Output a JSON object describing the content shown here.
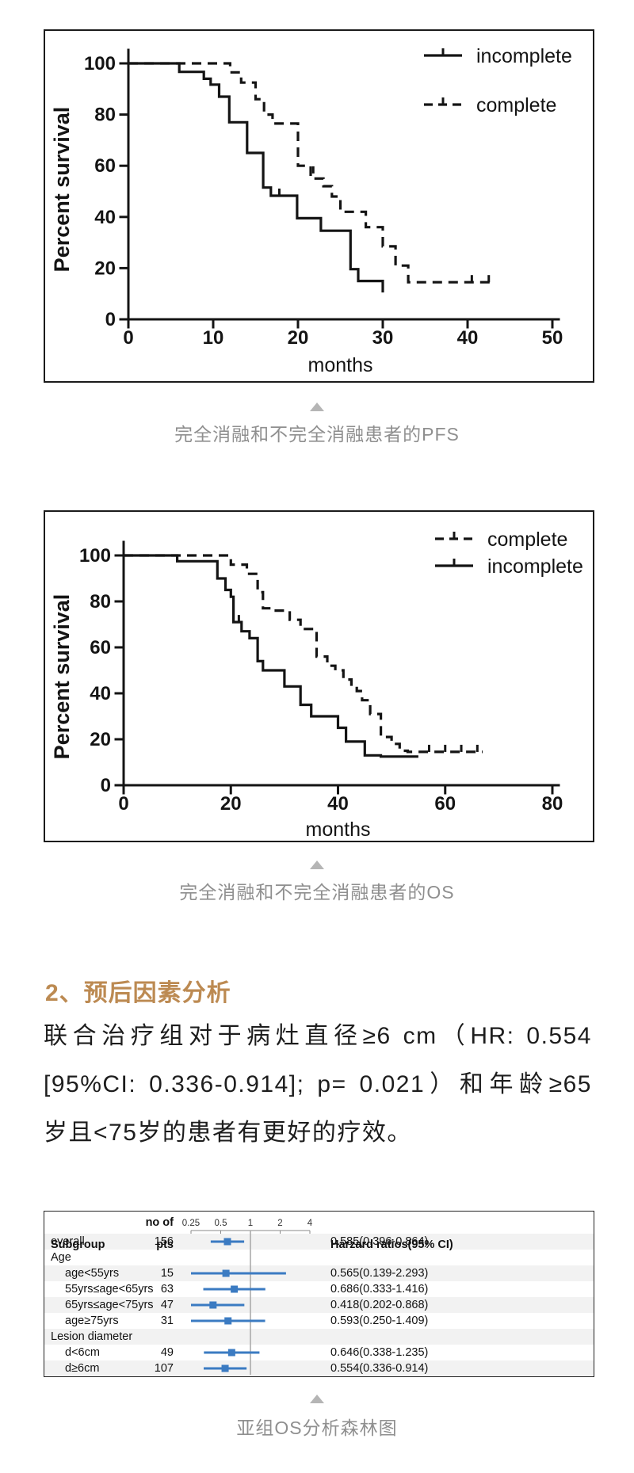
{
  "colors": {
    "accent_heading": "#bc8a52",
    "caption_gray": "#8f8f8f",
    "triangle_gray": "#b5b5b5",
    "curve_black": "#141414",
    "forest_blue": "#3b7bc2",
    "forest_ref_line": "#a6a6a6",
    "row_stripe": "#f2f2f2",
    "body_text": "#1d1d1d"
  },
  "figure1": {
    "caption": "完全消融和不完全消融患者的PFS"
  },
  "figure2": {
    "caption": "完全消融和不完全消融患者的OS"
  },
  "figure3": {
    "caption": "亚组OS分析森林图"
  },
  "section": {
    "heading": "2、预后因素分析",
    "paragraph_lines": [
      "联合治疗组对于病灶直径≥6 cm（HR: 0.554",
      "[95%CI: 0.336-0.914]; p= 0.021）和年龄≥65",
      "岁且<75岁的患者有更好的疗效。"
    ]
  },
  "chart_data": [
    {
      "id": "pfs",
      "type": "line",
      "subtype": "kaplan-meier-step",
      "xlabel": "months",
      "ylabel": "Percent survival",
      "xlim": [
        0,
        50
      ],
      "xticks": [
        0,
        10,
        20,
        30,
        40,
        50
      ],
      "ylim": [
        0,
        100
      ],
      "yticks": [
        0,
        20,
        40,
        60,
        80,
        100
      ],
      "grid": false,
      "legend_position": "top-right-inside",
      "legend": [
        {
          "label": "incomplete",
          "style": "solid"
        },
        {
          "label": "complete",
          "style": "dashed"
        }
      ],
      "series": [
        {
          "name": "incomplete",
          "style": "solid",
          "points": [
            [
              0,
              100
            ],
            [
              6,
              100
            ],
            [
              6,
              96.7
            ],
            [
              8.9,
              96.7
            ],
            [
              8.9,
              94
            ],
            [
              9.7,
              94
            ],
            [
              9.7,
              91.7
            ],
            [
              10.7,
              91.7
            ],
            [
              10.7,
              87
            ],
            [
              11.9,
              87
            ],
            [
              11.9,
              77
            ],
            [
              14,
              77
            ],
            [
              14,
              65
            ],
            [
              15.9,
              65
            ],
            [
              15.9,
              51.5
            ],
            [
              16.8,
              51.5
            ],
            [
              16.8,
              48.3
            ],
            [
              19.9,
              48.3
            ],
            [
              19.9,
              39.5
            ],
            [
              22.7,
              39.5
            ],
            [
              22.7,
              34.6
            ],
            [
              26.2,
              34.6
            ],
            [
              26.2,
              19.6
            ],
            [
              27.1,
              19.6
            ],
            [
              27.1,
              15
            ],
            [
              30,
              15
            ],
            [
              30,
              10.5
            ]
          ],
          "censor_ticks": [
            [
              17.8,
              48.3
            ]
          ]
        },
        {
          "name": "complete",
          "style": "dashed",
          "points": [
            [
              0,
              100
            ],
            [
              12,
              100
            ],
            [
              12,
              96.5
            ],
            [
              13.3,
              96.5
            ],
            [
              13.3,
              92.5
            ],
            [
              15,
              92.5
            ],
            [
              15,
              86
            ],
            [
              16,
              86
            ],
            [
              16,
              80
            ],
            [
              17,
              80
            ],
            [
              17,
              76.5
            ],
            [
              20,
              76.5
            ],
            [
              20,
              60
            ],
            [
              21.5,
              60
            ],
            [
              21.5,
              55
            ],
            [
              23,
              55
            ],
            [
              23,
              52
            ],
            [
              24,
              52
            ],
            [
              24,
              48
            ],
            [
              25,
              48
            ],
            [
              25,
              42
            ],
            [
              28,
              42
            ],
            [
              28,
              36
            ],
            [
              30,
              36
            ],
            [
              30,
              28.5
            ],
            [
              31.5,
              28.5
            ],
            [
              31.5,
              21
            ],
            [
              33,
              21
            ],
            [
              33,
              14.5
            ],
            [
              43,
              14.5
            ]
          ],
          "censor_ticks": [
            [
              21.8,
              57
            ],
            [
              40.5,
              14.5
            ],
            [
              42.5,
              14.5
            ]
          ]
        }
      ]
    },
    {
      "id": "os",
      "type": "line",
      "subtype": "kaplan-meier-step",
      "xlabel": "months",
      "ylabel": "Percent survival",
      "xlim": [
        0,
        80
      ],
      "xticks": [
        0,
        20,
        40,
        60,
        80
      ],
      "ylim": [
        0,
        100
      ],
      "yticks": [
        0,
        20,
        40,
        60,
        80,
        100
      ],
      "grid": false,
      "legend_position": "top-right-inside",
      "legend": [
        {
          "label": "complete",
          "style": "dashed"
        },
        {
          "label": "incomplete",
          "style": "solid"
        }
      ],
      "series": [
        {
          "name": "incomplete",
          "style": "solid",
          "points": [
            [
              0,
              100
            ],
            [
              10,
              100
            ],
            [
              10,
              97.5
            ],
            [
              17.5,
              97.5
            ],
            [
              17.5,
              90
            ],
            [
              19,
              90
            ],
            [
              19,
              85
            ],
            [
              20,
              85
            ],
            [
              20,
              82
            ],
            [
              20.5,
              82
            ],
            [
              20.5,
              71
            ],
            [
              22,
              71
            ],
            [
              22,
              67
            ],
            [
              23.5,
              67
            ],
            [
              23.5,
              64
            ],
            [
              25,
              64
            ],
            [
              25,
              54
            ],
            [
              26,
              54
            ],
            [
              26,
              50
            ],
            [
              30,
              50
            ],
            [
              30,
              43
            ],
            [
              33,
              43
            ],
            [
              33,
              35
            ],
            [
              35,
              35
            ],
            [
              35,
              30
            ],
            [
              40,
              30
            ],
            [
              40,
              25
            ],
            [
              41.5,
              25
            ],
            [
              41.5,
              19
            ],
            [
              45,
              19
            ],
            [
              45,
              13
            ],
            [
              48,
              13
            ],
            [
              48,
              12.5
            ],
            [
              55,
              12.5
            ]
          ],
          "censor_ticks": [
            [
              21.5,
              71
            ]
          ]
        },
        {
          "name": "complete",
          "style": "dashed",
          "points": [
            [
              0,
              100
            ],
            [
              20,
              100
            ],
            [
              20,
              96
            ],
            [
              23,
              96
            ],
            [
              23,
              92
            ],
            [
              25,
              92
            ],
            [
              25,
              84
            ],
            [
              26,
              84
            ],
            [
              26,
              77
            ],
            [
              27.5,
              77
            ],
            [
              27.5,
              76
            ],
            [
              31,
              76
            ],
            [
              31,
              72
            ],
            [
              33,
              72
            ],
            [
              33,
              68
            ],
            [
              36,
              68
            ],
            [
              36,
              56
            ],
            [
              38,
              56
            ],
            [
              38,
              52
            ],
            [
              39.5,
              52
            ],
            [
              39.5,
              50
            ],
            [
              41,
              50
            ],
            [
              41,
              46
            ],
            [
              42.5,
              46
            ],
            [
              42.5,
              43
            ],
            [
              43.5,
              43
            ],
            [
              43.5,
              41
            ],
            [
              44.5,
              41
            ],
            [
              44.5,
              37
            ],
            [
              46,
              37
            ],
            [
              46,
              31
            ],
            [
              48,
              31
            ],
            [
              48,
              21
            ],
            [
              50,
              21
            ],
            [
              50,
              18
            ],
            [
              51.5,
              18
            ],
            [
              51.5,
              15
            ],
            [
              53,
              15
            ],
            [
              53,
              14.5
            ],
            [
              67,
              14.5
            ]
          ],
          "censor_ticks": [
            [
              57,
              14.5
            ],
            [
              60,
              14.5
            ],
            [
              63,
              14.5
            ],
            [
              66,
              14.5
            ]
          ]
        }
      ]
    },
    {
      "id": "forest",
      "type": "scatter",
      "subtype": "forest-plot",
      "columns": {
        "subgroup": "Subgroup",
        "pts": "no of pts",
        "hr": "Harzard ratios(95% CI)"
      },
      "axis_ticks": [
        0.25,
        0.5,
        1,
        2,
        4
      ],
      "axis_scale": "log2",
      "ref_line": 1,
      "rows": [
        {
          "label": "overall",
          "pts": "156",
          "hr_text": "0.585(0.396-0.864)",
          "hr": 0.585,
          "lo": 0.396,
          "hi": 0.864
        },
        {
          "label": "Age",
          "group": true
        },
        {
          "label": "age<55yrs",
          "pts": "15",
          "hr_text": "0.565(0.139-2.293)",
          "hr": 0.565,
          "lo": 0.139,
          "hi": 2.293
        },
        {
          "label": "55yrs≤age<65yrs",
          "pts": "63",
          "hr_text": "0.686(0.333-1.416)",
          "hr": 0.686,
          "lo": 0.333,
          "hi": 1.416
        },
        {
          "label": "65yrs≤age<75yrs",
          "pts": "47",
          "hr_text": "0.418(0.202-0.868)",
          "hr": 0.418,
          "lo": 0.202,
          "hi": 0.868
        },
        {
          "label": "age≥75yrs",
          "pts": "31",
          "hr_text": "0.593(0.250-1.409)",
          "hr": 0.593,
          "lo": 0.25,
          "hi": 1.409
        },
        {
          "label": "Lesion diameter",
          "group": true
        },
        {
          "label": "d<6cm",
          "pts": "49",
          "hr_text": "0.646(0.338-1.235)",
          "hr": 0.646,
          "lo": 0.338,
          "hi": 1.235
        },
        {
          "label": "d≥6cm",
          "pts": "107",
          "hr_text": "0.554(0.336-0.914)",
          "hr": 0.554,
          "lo": 0.336,
          "hi": 0.914
        }
      ]
    }
  ]
}
